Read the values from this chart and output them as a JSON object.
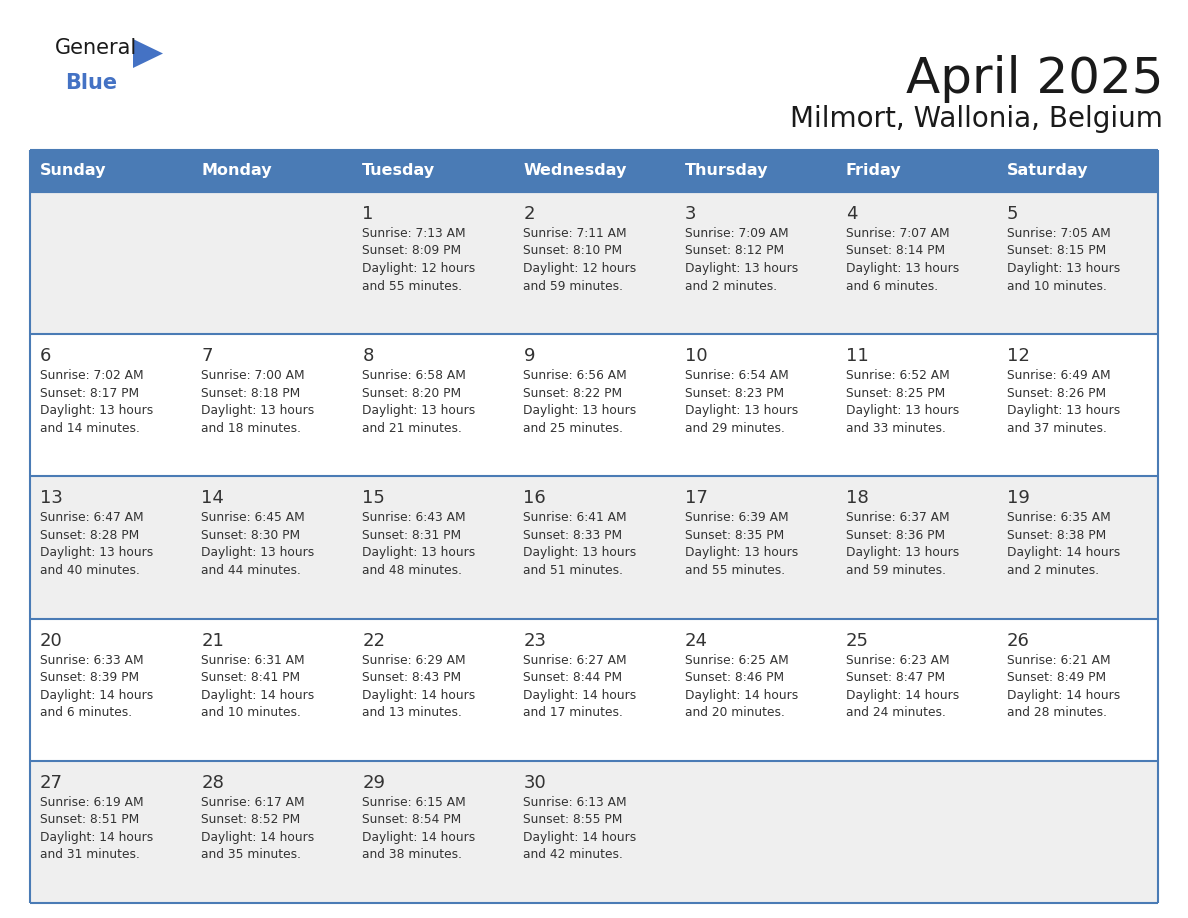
{
  "title": "April 2025",
  "subtitle": "Milmort, Wallonia, Belgium",
  "header_bg": "#4A7BB5",
  "header_text_color": "#FFFFFF",
  "border_color": "#4A7BB5",
  "day_number_color": "#333333",
  "text_color": "#333333",
  "cell_bg_odd": "#EFEFEF",
  "cell_bg_even": "#FFFFFF",
  "days_of_week": [
    "Sunday",
    "Monday",
    "Tuesday",
    "Wednesday",
    "Thursday",
    "Friday",
    "Saturday"
  ],
  "weeks": [
    [
      {
        "day": "",
        "sunrise": "",
        "sunset": "",
        "daylight1": "",
        "daylight2": ""
      },
      {
        "day": "",
        "sunrise": "",
        "sunset": "",
        "daylight1": "",
        "daylight2": ""
      },
      {
        "day": "1",
        "sunrise": "Sunrise: 7:13 AM",
        "sunset": "Sunset: 8:09 PM",
        "daylight1": "Daylight: 12 hours",
        "daylight2": "and 55 minutes."
      },
      {
        "day": "2",
        "sunrise": "Sunrise: 7:11 AM",
        "sunset": "Sunset: 8:10 PM",
        "daylight1": "Daylight: 12 hours",
        "daylight2": "and 59 minutes."
      },
      {
        "day": "3",
        "sunrise": "Sunrise: 7:09 AM",
        "sunset": "Sunset: 8:12 PM",
        "daylight1": "Daylight: 13 hours",
        "daylight2": "and 2 minutes."
      },
      {
        "day": "4",
        "sunrise": "Sunrise: 7:07 AM",
        "sunset": "Sunset: 8:14 PM",
        "daylight1": "Daylight: 13 hours",
        "daylight2": "and 6 minutes."
      },
      {
        "day": "5",
        "sunrise": "Sunrise: 7:05 AM",
        "sunset": "Sunset: 8:15 PM",
        "daylight1": "Daylight: 13 hours",
        "daylight2": "and 10 minutes."
      }
    ],
    [
      {
        "day": "6",
        "sunrise": "Sunrise: 7:02 AM",
        "sunset": "Sunset: 8:17 PM",
        "daylight1": "Daylight: 13 hours",
        "daylight2": "and 14 minutes."
      },
      {
        "day": "7",
        "sunrise": "Sunrise: 7:00 AM",
        "sunset": "Sunset: 8:18 PM",
        "daylight1": "Daylight: 13 hours",
        "daylight2": "and 18 minutes."
      },
      {
        "day": "8",
        "sunrise": "Sunrise: 6:58 AM",
        "sunset": "Sunset: 8:20 PM",
        "daylight1": "Daylight: 13 hours",
        "daylight2": "and 21 minutes."
      },
      {
        "day": "9",
        "sunrise": "Sunrise: 6:56 AM",
        "sunset": "Sunset: 8:22 PM",
        "daylight1": "Daylight: 13 hours",
        "daylight2": "and 25 minutes."
      },
      {
        "day": "10",
        "sunrise": "Sunrise: 6:54 AM",
        "sunset": "Sunset: 8:23 PM",
        "daylight1": "Daylight: 13 hours",
        "daylight2": "and 29 minutes."
      },
      {
        "day": "11",
        "sunrise": "Sunrise: 6:52 AM",
        "sunset": "Sunset: 8:25 PM",
        "daylight1": "Daylight: 13 hours",
        "daylight2": "and 33 minutes."
      },
      {
        "day": "12",
        "sunrise": "Sunrise: 6:49 AM",
        "sunset": "Sunset: 8:26 PM",
        "daylight1": "Daylight: 13 hours",
        "daylight2": "and 37 minutes."
      }
    ],
    [
      {
        "day": "13",
        "sunrise": "Sunrise: 6:47 AM",
        "sunset": "Sunset: 8:28 PM",
        "daylight1": "Daylight: 13 hours",
        "daylight2": "and 40 minutes."
      },
      {
        "day": "14",
        "sunrise": "Sunrise: 6:45 AM",
        "sunset": "Sunset: 8:30 PM",
        "daylight1": "Daylight: 13 hours",
        "daylight2": "and 44 minutes."
      },
      {
        "day": "15",
        "sunrise": "Sunrise: 6:43 AM",
        "sunset": "Sunset: 8:31 PM",
        "daylight1": "Daylight: 13 hours",
        "daylight2": "and 48 minutes."
      },
      {
        "day": "16",
        "sunrise": "Sunrise: 6:41 AM",
        "sunset": "Sunset: 8:33 PM",
        "daylight1": "Daylight: 13 hours",
        "daylight2": "and 51 minutes."
      },
      {
        "day": "17",
        "sunrise": "Sunrise: 6:39 AM",
        "sunset": "Sunset: 8:35 PM",
        "daylight1": "Daylight: 13 hours",
        "daylight2": "and 55 minutes."
      },
      {
        "day": "18",
        "sunrise": "Sunrise: 6:37 AM",
        "sunset": "Sunset: 8:36 PM",
        "daylight1": "Daylight: 13 hours",
        "daylight2": "and 59 minutes."
      },
      {
        "day": "19",
        "sunrise": "Sunrise: 6:35 AM",
        "sunset": "Sunset: 8:38 PM",
        "daylight1": "Daylight: 14 hours",
        "daylight2": "and 2 minutes."
      }
    ],
    [
      {
        "day": "20",
        "sunrise": "Sunrise: 6:33 AM",
        "sunset": "Sunset: 8:39 PM",
        "daylight1": "Daylight: 14 hours",
        "daylight2": "and 6 minutes."
      },
      {
        "day": "21",
        "sunrise": "Sunrise: 6:31 AM",
        "sunset": "Sunset: 8:41 PM",
        "daylight1": "Daylight: 14 hours",
        "daylight2": "and 10 minutes."
      },
      {
        "day": "22",
        "sunrise": "Sunrise: 6:29 AM",
        "sunset": "Sunset: 8:43 PM",
        "daylight1": "Daylight: 14 hours",
        "daylight2": "and 13 minutes."
      },
      {
        "day": "23",
        "sunrise": "Sunrise: 6:27 AM",
        "sunset": "Sunset: 8:44 PM",
        "daylight1": "Daylight: 14 hours",
        "daylight2": "and 17 minutes."
      },
      {
        "day": "24",
        "sunrise": "Sunrise: 6:25 AM",
        "sunset": "Sunset: 8:46 PM",
        "daylight1": "Daylight: 14 hours",
        "daylight2": "and 20 minutes."
      },
      {
        "day": "25",
        "sunrise": "Sunrise: 6:23 AM",
        "sunset": "Sunset: 8:47 PM",
        "daylight1": "Daylight: 14 hours",
        "daylight2": "and 24 minutes."
      },
      {
        "day": "26",
        "sunrise": "Sunrise: 6:21 AM",
        "sunset": "Sunset: 8:49 PM",
        "daylight1": "Daylight: 14 hours",
        "daylight2": "and 28 minutes."
      }
    ],
    [
      {
        "day": "27",
        "sunrise": "Sunrise: 6:19 AM",
        "sunset": "Sunset: 8:51 PM",
        "daylight1": "Daylight: 14 hours",
        "daylight2": "and 31 minutes."
      },
      {
        "day": "28",
        "sunrise": "Sunrise: 6:17 AM",
        "sunset": "Sunset: 8:52 PM",
        "daylight1": "Daylight: 14 hours",
        "daylight2": "and 35 minutes."
      },
      {
        "day": "29",
        "sunrise": "Sunrise: 6:15 AM",
        "sunset": "Sunset: 8:54 PM",
        "daylight1": "Daylight: 14 hours",
        "daylight2": "and 38 minutes."
      },
      {
        "day": "30",
        "sunrise": "Sunrise: 6:13 AM",
        "sunset": "Sunset: 8:55 PM",
        "daylight1": "Daylight: 14 hours",
        "daylight2": "and 42 minutes."
      },
      {
        "day": "",
        "sunrise": "",
        "sunset": "",
        "daylight1": "",
        "daylight2": ""
      },
      {
        "day": "",
        "sunrise": "",
        "sunset": "",
        "daylight1": "",
        "daylight2": ""
      },
      {
        "day": "",
        "sunrise": "",
        "sunset": "",
        "daylight1": "",
        "daylight2": ""
      }
    ]
  ],
  "fig_width": 11.88,
  "fig_height": 9.18,
  "dpi": 100
}
